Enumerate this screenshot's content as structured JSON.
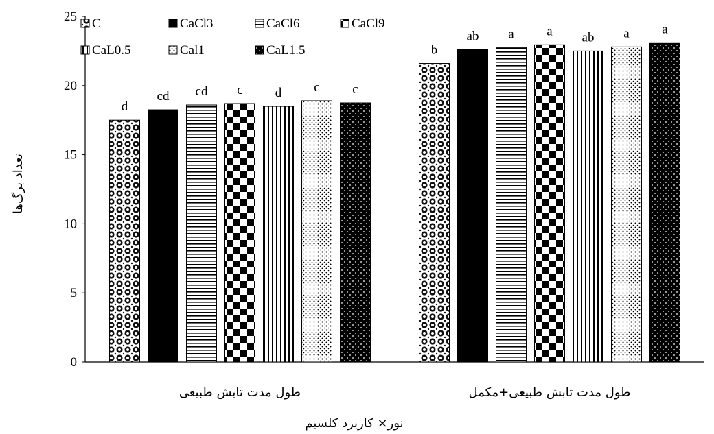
{
  "chart_data": {
    "type": "bar",
    "xlabel": "نور× کاربرد کلسیم",
    "ylabel": "تعداد برگ‌ها",
    "ylim": [
      0,
      25
    ],
    "yticks": [
      0,
      5,
      10,
      15,
      20,
      25
    ],
    "grid": false,
    "legend_position": "top-left",
    "categories": [
      "طول مدت تابش طبیعی",
      "طول مدت تابش طبیعی+مکمل"
    ],
    "series": [
      {
        "name": "C",
        "pattern": "circles",
        "values": [
          17.5,
          21.6
        ],
        "labels": [
          "d",
          "b"
        ]
      },
      {
        "name": "CaCl3",
        "pattern": "solid",
        "values": [
          18.25,
          22.6
        ],
        "labels": [
          "cd",
          "ab"
        ]
      },
      {
        "name": "CaCl6",
        "pattern": "hlines",
        "values": [
          18.6,
          22.75
        ],
        "labels": [
          "cd",
          "a"
        ]
      },
      {
        "name": "CaCl9",
        "pattern": "checker",
        "values": [
          18.7,
          22.95
        ],
        "labels": [
          "c",
          "a"
        ]
      },
      {
        "name": "CaL0.5",
        "pattern": "vlines",
        "values": [
          18.5,
          22.5
        ],
        "labels": [
          "d",
          "ab"
        ]
      },
      {
        "name": "Cal1",
        "pattern": "dots",
        "values": [
          18.9,
          22.8
        ],
        "labels": [
          "c",
          "a"
        ]
      },
      {
        "name": "CaL1.5",
        "pattern": "darkdots",
        "values": [
          18.75,
          23.1
        ],
        "labels": [
          "c",
          "a"
        ]
      }
    ]
  }
}
